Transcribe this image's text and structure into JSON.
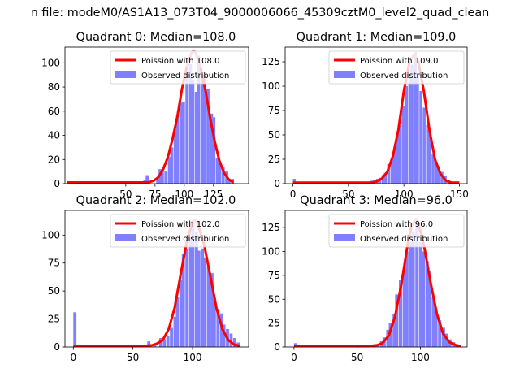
{
  "suptitle": "n file: modeM0/AS1A13_073T04_9000006066_45309cztM0_level2_quad_clean",
  "colors": {
    "histogram": "#8080ff",
    "poisson": "#ff0000",
    "poisson_peak_highlight": "#f08080",
    "axes": "#000000"
  },
  "chart_data": [
    {
      "type": "bar",
      "title": "Quadrant 0: Median=108.0",
      "median": 108.0,
      "legend": [
        "Poission with 108.0",
        "Observed distribution"
      ],
      "legend_position": "top-right",
      "xlim": [
        -2,
        155
      ],
      "ylim": [
        0,
        113
      ],
      "xticks": [
        50,
        75,
        100,
        125
      ],
      "yticks": [
        0,
        20,
        40,
        60,
        80,
        100
      ],
      "bin_width": 2.6,
      "bins_x": [
        50,
        62,
        65,
        67,
        76,
        78,
        80,
        83,
        86,
        88,
        91,
        93,
        96,
        98,
        101,
        104,
        106,
        109,
        111,
        114,
        116,
        119,
        122,
        124,
        127,
        129,
        132,
        135,
        137,
        140
      ],
      "counts": [
        2,
        2,
        3,
        7,
        4,
        12,
        12,
        10,
        22,
        30,
        45,
        57,
        67,
        68,
        88,
        99,
        86,
        76,
        106,
        90,
        88,
        78,
        58,
        55,
        21,
        18,
        14,
        10,
        4,
        4
      ],
      "curve_x": [
        0,
        66,
        70,
        74,
        78,
        82,
        86,
        90,
        94,
        98,
        102,
        106,
        108,
        110,
        114,
        118,
        122,
        126,
        130,
        134,
        138,
        142
      ],
      "curve_y": [
        1,
        1,
        1.2,
        2.5,
        5.5,
        12,
        22,
        37,
        55,
        78,
        96,
        108,
        110,
        108,
        96,
        78,
        55,
        35,
        19,
        9,
        3.5,
        1
      ]
    },
    {
      "type": "bar",
      "title": "Quadrant 1: Median=109.0",
      "median": 109.0,
      "legend": [
        "Poission with 109.0",
        "Observed distribution"
      ],
      "legend_position": "top-right",
      "xlim": [
        -7,
        157
      ],
      "ylim": [
        0,
        140
      ],
      "xticks": [
        0,
        50,
        100,
        150
      ],
      "yticks": [
        0,
        25,
        50,
        75,
        100,
        125
      ],
      "bin_width": 2.6,
      "bins_x": [
        0,
        55,
        62,
        70,
        72,
        75,
        77,
        80,
        82,
        85,
        88,
        90,
        93,
        95,
        98,
        101,
        104,
        106,
        109,
        111,
        114,
        117,
        120,
        122,
        125,
        128,
        130,
        133,
        136,
        139,
        142
      ],
      "counts": [
        5,
        2,
        2,
        3,
        4,
        5,
        6,
        9,
        11,
        20,
        25,
        35,
        50,
        60,
        80,
        100,
        112,
        122,
        135,
        113,
        95,
        78,
        60,
        50,
        30,
        22,
        18,
        12,
        8,
        4,
        2
      ],
      "curve_x": [
        0,
        70,
        75,
        80,
        85,
        90,
        95,
        100,
        105,
        109,
        113,
        118,
        123,
        128,
        133,
        138,
        143,
        150
      ],
      "curve_y": [
        1,
        1,
        2,
        5,
        12,
        28,
        55,
        95,
        125,
        132,
        125,
        95,
        55,
        25,
        10,
        3,
        1,
        1
      ]
    },
    {
      "type": "bar",
      "title": "Quadrant 2: Median=102.0",
      "median": 102.0,
      "legend": [
        "Poission with 102.0",
        "Observed distribution"
      ],
      "legend_position": "top-right",
      "xlim": [
        -7,
        147
      ],
      "ylim": [
        0,
        122
      ],
      "xticks": [
        0,
        50,
        100
      ],
      "yticks": [
        0,
        25,
        50,
        75,
        100
      ],
      "bin_width": 2.6,
      "bins_x": [
        0,
        50,
        62,
        67,
        72,
        75,
        78,
        81,
        84,
        86,
        89,
        91,
        94,
        97,
        99,
        102,
        104,
        107,
        109,
        112,
        115,
        117,
        120,
        123,
        125,
        128,
        131,
        134,
        137
      ],
      "counts": [
        31,
        2,
        5,
        3,
        8,
        7,
        10,
        17,
        27,
        45,
        60,
        83,
        88,
        98,
        112,
        103,
        86,
        88,
        80,
        72,
        66,
        44,
        34,
        30,
        20,
        16,
        12,
        8,
        4
      ],
      "curve_x": [
        0,
        60,
        66,
        70,
        75,
        80,
        85,
        90,
        95,
        100,
        102,
        104,
        110,
        115,
        120,
        125,
        130,
        135,
        140
      ],
      "curve_y": [
        1,
        1,
        1.5,
        3,
        6,
        16,
        35,
        65,
        93,
        112,
        113,
        112,
        90,
        63,
        35,
        16,
        6,
        2,
        1
      ]
    },
    {
      "type": "bar",
      "title": "Quadrant 3: Median=96.0",
      "median": 96.0,
      "legend": [
        "Poission with 96.0",
        "Observed distribution"
      ],
      "legend_position": "top-right",
      "xlim": [
        -7,
        137
      ],
      "ylim": [
        0,
        143
      ],
      "xticks": [
        0,
        50,
        100
      ],
      "yticks": [
        0,
        25,
        50,
        75,
        100,
        125
      ],
      "bin_width": 2.6,
      "bins_x": [
        0,
        55,
        62,
        65,
        68,
        70,
        73,
        75,
        78,
        80,
        83,
        86,
        88,
        91,
        93,
        96,
        99,
        101,
        104,
        106,
        109,
        111,
        114,
        117,
        119,
        122,
        125,
        127
      ],
      "counts": [
        4,
        2,
        2,
        3,
        6,
        10,
        18,
        25,
        35,
        55,
        70,
        80,
        100,
        110,
        120,
        135,
        110,
        100,
        90,
        80,
        52,
        40,
        28,
        20,
        14,
        8,
        5,
        3
      ],
      "curve_x": [
        0,
        60,
        66,
        70,
        75,
        80,
        85,
        90,
        93,
        96,
        99,
        103,
        108,
        113,
        118,
        123,
        128,
        132
      ],
      "curve_y": [
        1,
        1,
        2,
        4,
        12,
        32,
        66,
        108,
        127,
        133,
        127,
        105,
        68,
        35,
        14,
        5,
        2,
        1
      ]
    }
  ]
}
